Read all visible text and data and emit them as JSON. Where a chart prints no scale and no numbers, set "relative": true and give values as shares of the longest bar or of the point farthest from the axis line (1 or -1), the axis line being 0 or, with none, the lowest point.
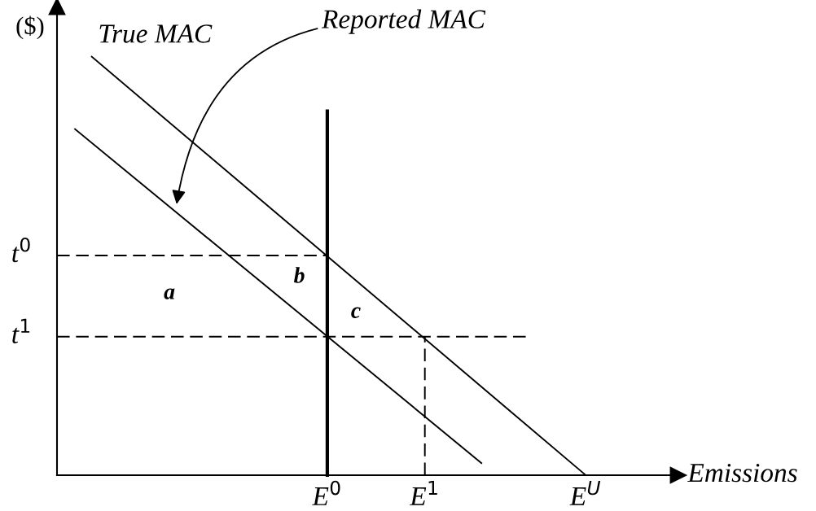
{
  "chart_data": {
    "type": "line",
    "relative": true,
    "xlabel": "Emissions",
    "ylabel": "($)",
    "xlim": [
      0,
      1
    ],
    "xticks": [
      {
        "value": 0.435,
        "label": "E$^{0}$"
      },
      {
        "value": 0.592,
        "label": "E$^{1}$"
      },
      {
        "value": 0.851,
        "label": "E$^{U}$"
      }
    ],
    "series": [
      {
        "name": "True MAC",
        "color": "#000000",
        "x": [
          0.056,
          0.851
        ],
        "values": [
          1,
          0
        ]
      },
      {
        "name": "Reported MAC",
        "color": "#000000",
        "x": [
          0.029,
          0.683
        ],
        "values": [
          0.827,
          0.029
        ]
      },
      {
        "color": "#000000",
        "x": [
          0.435,
          0.435
        ],
        "values": [
          0,
          0.87
        ]
      },
      {
        "color": "#000000",
        "line_style": "dashed",
        "x": [
          0,
          0.435
        ],
        "values": [
          0.525,
          0.525
        ]
      },
      {
        "color": "#000000",
        "line_style": "dashed",
        "x": [
          0,
          0.76
        ],
        "values": [
          0.331,
          0.331
        ]
      },
      {
        "color": "#000000",
        "line_style": "dashed",
        "x": [
          0.592,
          0.592
        ],
        "values": [
          0,
          0.331
        ]
      }
    ],
    "annotations": [
      {
        "text": "t$^{0}$",
        "x": 0,
        "y": 0.525
      },
      {
        "text": "t$^{1}$",
        "x": 0,
        "y": 0.331
      },
      "a",
      "b",
      "c"
    ],
    "grid": false,
    "legend": false,
    "marker": "none",
    "line_style": "solid"
  }
}
